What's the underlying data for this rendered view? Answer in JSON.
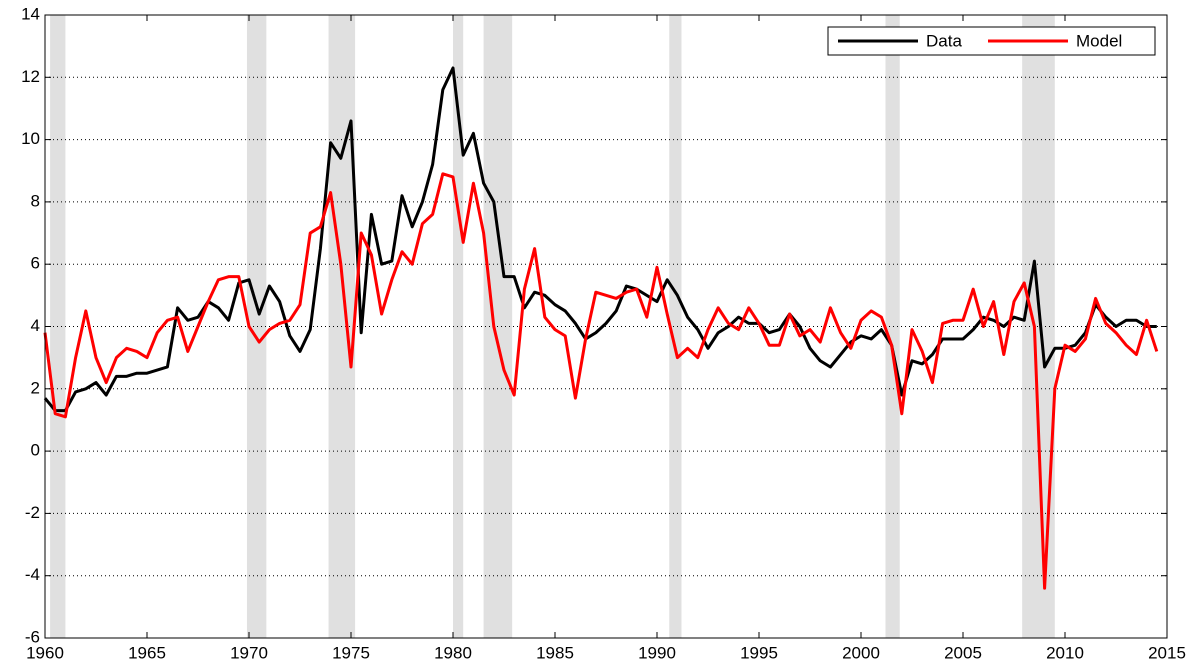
{
  "chart_data": {
    "type": "line",
    "x": [
      1960.0,
      1960.5,
      1961.0,
      1961.5,
      1962.0,
      1962.5,
      1963.0,
      1963.5,
      1964.0,
      1964.5,
      1965.0,
      1965.5,
      1966.0,
      1966.5,
      1967.0,
      1967.5,
      1968.0,
      1968.5,
      1969.0,
      1969.5,
      1970.0,
      1970.5,
      1971.0,
      1971.5,
      1972.0,
      1972.5,
      1973.0,
      1973.5,
      1974.0,
      1974.5,
      1975.0,
      1975.5,
      1976.0,
      1976.5,
      1977.0,
      1977.5,
      1978.0,
      1978.5,
      1979.0,
      1979.5,
      1980.0,
      1980.5,
      1981.0,
      1981.5,
      1982.0,
      1982.5,
      1983.0,
      1983.5,
      1984.0,
      1984.5,
      1985.0,
      1985.5,
      1986.0,
      1986.5,
      1987.0,
      1987.5,
      1988.0,
      1988.5,
      1989.0,
      1989.5,
      1990.0,
      1990.5,
      1991.0,
      1991.5,
      1992.0,
      1992.5,
      1993.0,
      1993.5,
      1994.0,
      1994.5,
      1995.0,
      1995.5,
      1996.0,
      1996.5,
      1997.0,
      1997.5,
      1998.0,
      1998.5,
      1999.0,
      1999.5,
      2000.0,
      2000.5,
      2001.0,
      2001.5,
      2002.0,
      2002.5,
      2003.0,
      2003.5,
      2004.0,
      2004.5,
      2005.0,
      2005.5,
      2006.0,
      2006.5,
      2007.0,
      2007.5,
      2008.0,
      2008.5,
      2009.0,
      2009.5,
      2010.0,
      2010.5,
      2011.0,
      2011.5,
      2012.0,
      2012.5,
      2013.0,
      2013.5,
      2014.0,
      2014.5
    ],
    "series": [
      {
        "name": "Data",
        "color": "#000000",
        "values": [
          1.7,
          1.3,
          1.3,
          1.9,
          2.0,
          2.2,
          1.8,
          2.4,
          2.4,
          2.5,
          2.5,
          2.6,
          2.7,
          4.6,
          4.2,
          4.3,
          4.8,
          4.6,
          4.2,
          5.4,
          5.5,
          4.4,
          5.3,
          4.8,
          3.7,
          3.2,
          3.9,
          6.5,
          9.9,
          9.4,
          10.6,
          3.8,
          7.6,
          6.0,
          6.1,
          8.2,
          7.2,
          8.0,
          9.2,
          11.6,
          12.3,
          9.5,
          10.2,
          8.6,
          8.0,
          5.6,
          5.6,
          4.6,
          5.1,
          5.0,
          4.7,
          4.5,
          4.1,
          3.6,
          3.8,
          4.1,
          4.5,
          5.3,
          5.2,
          5.0,
          4.8,
          5.5,
          5.0,
          4.3,
          3.9,
          3.3,
          3.8,
          4.0,
          4.3,
          4.1,
          4.1,
          3.8,
          3.9,
          4.4,
          4.0,
          3.3,
          2.9,
          2.7,
          3.1,
          3.5,
          3.7,
          3.6,
          3.9,
          3.4,
          1.8,
          2.9,
          2.8,
          3.1,
          3.6,
          3.6,
          3.6,
          3.9,
          4.3,
          4.2,
          4.0,
          4.3,
          4.2,
          6.1,
          2.7,
          3.3,
          3.3,
          3.4,
          3.8,
          4.7,
          4.3,
          4.0,
          4.2,
          4.2,
          4.0,
          4.0
        ]
      },
      {
        "name": "Model",
        "color": "#ff0000",
        "values": [
          3.8,
          1.2,
          1.1,
          3.0,
          4.5,
          3.0,
          2.2,
          3.0,
          3.3,
          3.2,
          3.0,
          3.8,
          4.2,
          4.3,
          3.2,
          4.0,
          4.8,
          5.5,
          5.6,
          5.6,
          4.0,
          3.5,
          3.9,
          4.1,
          4.2,
          4.7,
          7.0,
          7.2,
          8.3,
          6.0,
          2.7,
          7.0,
          6.3,
          4.4,
          5.5,
          6.4,
          6.0,
          7.3,
          7.6,
          8.9,
          8.8,
          6.7,
          8.6,
          7.0,
          4.0,
          2.6,
          1.8,
          5.2,
          6.5,
          4.3,
          3.9,
          3.7,
          1.7,
          3.6,
          5.1,
          5.0,
          4.9,
          5.1,
          5.2,
          4.3,
          5.9,
          4.4,
          3.0,
          3.3,
          3.0,
          3.9,
          4.6,
          4.1,
          3.9,
          4.6,
          4.1,
          3.4,
          3.4,
          4.4,
          3.7,
          3.9,
          3.5,
          4.6,
          3.8,
          3.3,
          4.2,
          4.5,
          4.3,
          3.4,
          1.2,
          3.9,
          3.2,
          2.2,
          4.1,
          4.2,
          4.2,
          5.2,
          4.0,
          4.8,
          3.1,
          4.8,
          5.4,
          4.0,
          -4.4,
          2.0,
          3.4,
          3.2,
          3.6,
          4.9,
          4.1,
          3.8,
          3.4,
          3.1,
          4.2,
          3.2
        ]
      }
    ],
    "recessions": [
      [
        1960.25,
        1961.0
      ],
      [
        1969.9,
        1970.85
      ],
      [
        1973.9,
        1975.2
      ],
      [
        1980.0,
        1980.5
      ],
      [
        1981.5,
        1982.9
      ],
      [
        1990.6,
        1991.2
      ],
      [
        2001.2,
        2001.9
      ],
      [
        2007.9,
        2009.5
      ]
    ],
    "xlim": [
      1960,
      2015
    ],
    "xticks": [
      1960,
      1965,
      1970,
      1975,
      1980,
      1985,
      1990,
      1995,
      2000,
      2005,
      2010,
      2015
    ],
    "ylim": [
      -6,
      14
    ],
    "yticks": [
      -6,
      -4,
      -2,
      0,
      2,
      4,
      6,
      8,
      10,
      12,
      14
    ],
    "grid": true,
    "legend": "upper right"
  }
}
